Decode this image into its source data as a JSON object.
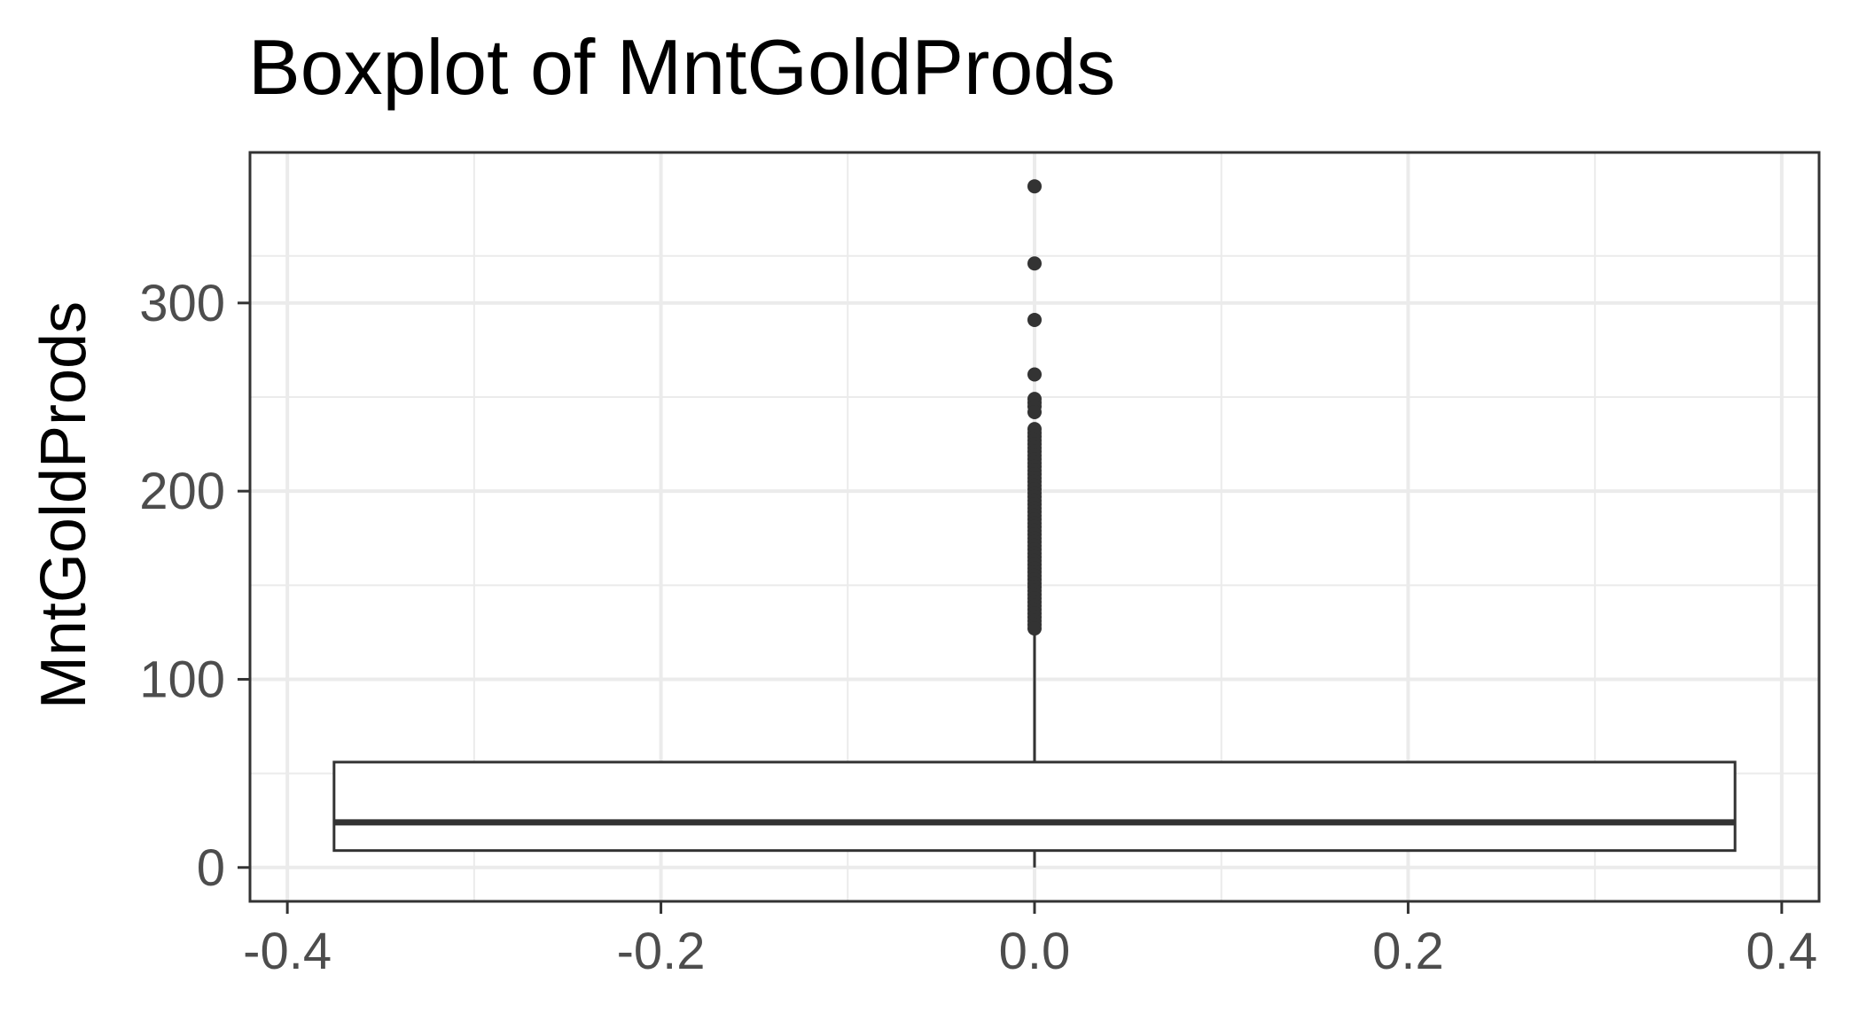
{
  "chart_data": {
    "type": "boxplot",
    "title": "Boxplot of MntGoldProds",
    "xlabel": "",
    "ylabel": "MntGoldProds",
    "xlim": [
      -0.42,
      0.42
    ],
    "ylim": [
      -18,
      380
    ],
    "x_ticks": [
      -0.4,
      -0.2,
      0.0,
      0.2,
      0.4
    ],
    "x_tick_labels": [
      "-0.4",
      "-0.2",
      "0.0",
      "0.2",
      "0.4"
    ],
    "y_ticks": [
      0,
      100,
      200,
      300
    ],
    "y_tick_labels": [
      "0",
      "100",
      "200",
      "300"
    ],
    "grid": true,
    "box": {
      "x": 0.0,
      "x_min": -0.375,
      "x_max": 0.375,
      "min": 0,
      "q1": 9,
      "median": 24,
      "q3": 56,
      "whisker_high": 126
    },
    "outliers": [
      362,
      321,
      291,
      262,
      249,
      247,
      245,
      242,
      233,
      231,
      229,
      227,
      225,
      223,
      221,
      219,
      217,
      215,
      213,
      211,
      209,
      207,
      205,
      203,
      201,
      199,
      197,
      195,
      193,
      191,
      189,
      187,
      185,
      183,
      181,
      179,
      177,
      175,
      173,
      171,
      169,
      167,
      165,
      163,
      161,
      159,
      157,
      155,
      153,
      151,
      149,
      147,
      145,
      143,
      141,
      139,
      137,
      135,
      133,
      131,
      129,
      127
    ],
    "colors": {
      "grid": "#ebebeb",
      "panel_border": "#333333",
      "box_line": "#333333",
      "box_fill": "#ffffff",
      "tick_text": "#4d4d4d",
      "title_text": "#000000"
    }
  }
}
